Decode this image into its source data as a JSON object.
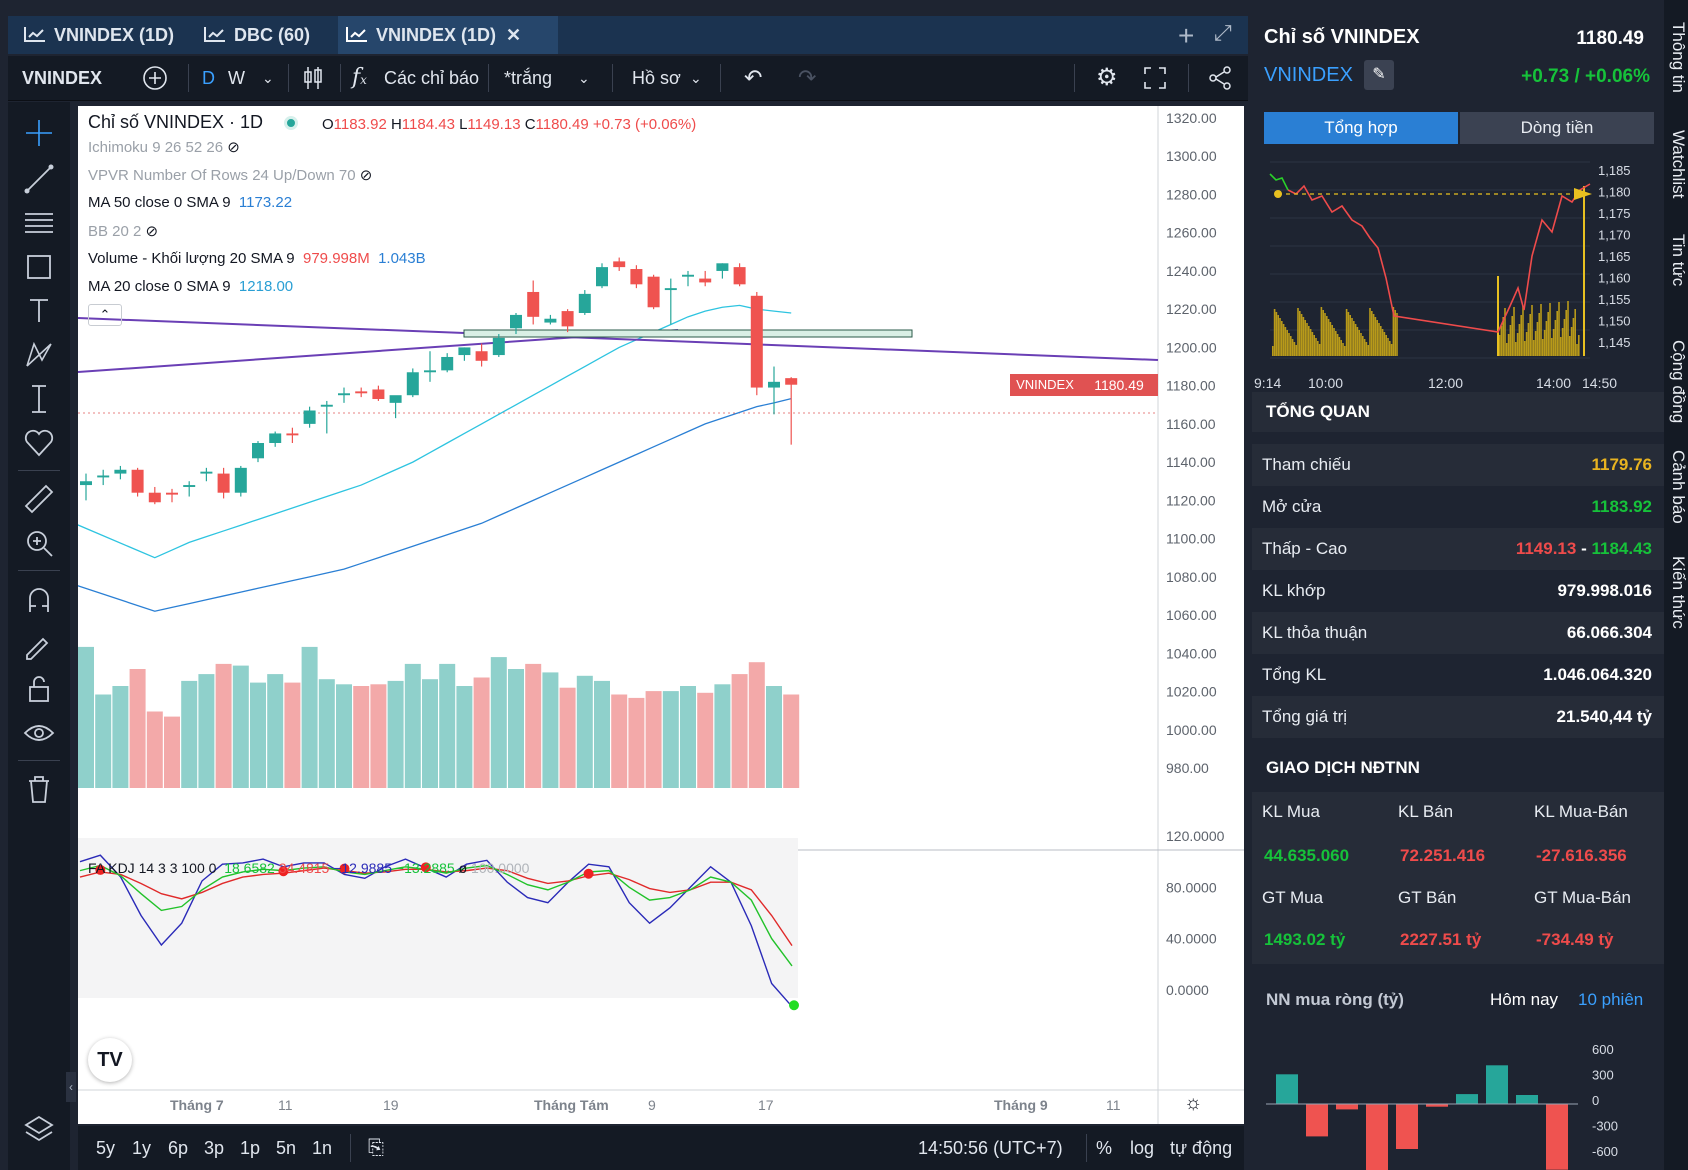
{
  "tabs": [
    {
      "label": "VNINDEX (1D)",
      "active": false
    },
    {
      "label": "DBC (60)",
      "active": false
    },
    {
      "label": "VNINDEX (1D)",
      "active": true
    }
  ],
  "toolbar": {
    "symbol": "VNINDEX",
    "interval_d": "D",
    "interval_w": "W",
    "indicators": "Các chỉ báo",
    "template": "*trắng",
    "profile": "Hồ sơ"
  },
  "legend": {
    "title": "Chỉ số VNINDEX · 1D",
    "o_label": "O",
    "o": "1183.92",
    "h_label": "H",
    "h": "1184.43",
    "l_label": "L",
    "l": "1149.13",
    "c_label": "C",
    "c": "1180.49",
    "change": "+0.73 (+0.06%)",
    "ichimoku": "Ichimoku 9 26 52 26",
    "vpvr": "VPVR Number Of Rows 24 Up/Down 70",
    "ma50": "MA 50 close 0 SMA 9",
    "ma50_val": "1173.22",
    "bb": "BB 20 2",
    "volume": "Volume - Khối lượng 20 SMA 9",
    "volume_v1": "979.998M",
    "volume_v2": "1.043B",
    "ma20": "MA 20 close 0 SMA 9",
    "ma20_val": "1218.00"
  },
  "kdj": {
    "label": "FA KDJ 14 3 3 100 0",
    "k": "18.6582",
    "d": "34.4815",
    "j": "−12.9885",
    "j2": "−13.2885",
    "sym": "ø",
    "v100": "100.0000"
  },
  "price_badge": {
    "symbol": "VNINDEX",
    "value": "1180.49"
  },
  "price_axis": [
    "1320.00",
    "1300.00",
    "1280.00",
    "1260.00",
    "1240.00",
    "1220.00",
    "1200.00",
    "1180.00",
    "1160.00",
    "1140.00",
    "1120.00",
    "1100.00",
    "1080.00",
    "1060.00",
    "1040.00",
    "1020.00",
    "1000.00",
    "980.00"
  ],
  "kdj_axis": [
    "120.0000",
    "80.0000",
    "40.0000",
    "0.0000"
  ],
  "time_axis": [
    "Tháng 7",
    "11",
    "19",
    "Tháng Tám",
    "9",
    "17",
    "Tháng 9",
    "11"
  ],
  "chart_data": {
    "type": "candlestick",
    "title": "Chỉ số VNINDEX · 1D",
    "ylim": [
      970,
      1330
    ],
    "candles": [
      {
        "o": 1128,
        "h": 1134,
        "l": 1120,
        "c": 1130
      },
      {
        "o": 1132,
        "h": 1136,
        "l": 1128,
        "c": 1133
      },
      {
        "o": 1134,
        "h": 1138,
        "l": 1131,
        "c": 1136
      },
      {
        "o": 1136,
        "h": 1137,
        "l": 1122,
        "c": 1124
      },
      {
        "o": 1124,
        "h": 1127,
        "l": 1118,
        "c": 1119
      },
      {
        "o": 1124,
        "h": 1126,
        "l": 1119,
        "c": 1123
      },
      {
        "o": 1127,
        "h": 1130,
        "l": 1122,
        "c": 1128
      },
      {
        "o": 1134,
        "h": 1137,
        "l": 1130,
        "c": 1135
      },
      {
        "o": 1134,
        "h": 1137,
        "l": 1121,
        "c": 1124
      },
      {
        "o": 1124,
        "h": 1138,
        "l": 1122,
        "c": 1137
      },
      {
        "o": 1142,
        "h": 1151,
        "l": 1140,
        "c": 1150
      },
      {
        "o": 1150,
        "h": 1156,
        "l": 1148,
        "c": 1155
      },
      {
        "o": 1155,
        "h": 1158,
        "l": 1150,
        "c": 1154
      },
      {
        "o": 1160,
        "h": 1169,
        "l": 1158,
        "c": 1167
      },
      {
        "o": 1169,
        "h": 1172,
        "l": 1155,
        "c": 1170
      },
      {
        "o": 1175,
        "h": 1179,
        "l": 1171,
        "c": 1176
      },
      {
        "o": 1177,
        "h": 1179,
        "l": 1174,
        "c": 1176
      },
      {
        "o": 1178,
        "h": 1180,
        "l": 1172,
        "c": 1173
      },
      {
        "o": 1171,
        "h": 1174,
        "l": 1163,
        "c": 1175
      },
      {
        "o": 1175,
        "h": 1189,
        "l": 1174,
        "c": 1187
      },
      {
        "o": 1187,
        "h": 1198,
        "l": 1182,
        "c": 1188
      },
      {
        "o": 1188,
        "h": 1197,
        "l": 1187,
        "c": 1195
      },
      {
        "o": 1196,
        "h": 1200,
        "l": 1193,
        "c": 1200
      },
      {
        "o": 1198,
        "h": 1202,
        "l": 1190,
        "c": 1193
      },
      {
        "o": 1196,
        "h": 1207,
        "l": 1195,
        "c": 1205
      },
      {
        "o": 1210,
        "h": 1218,
        "l": 1207,
        "c": 1217
      },
      {
        "o": 1229,
        "h": 1235,
        "l": 1212,
        "c": 1216
      },
      {
        "o": 1213,
        "h": 1217,
        "l": 1212,
        "c": 1215
      },
      {
        "o": 1219,
        "h": 1220,
        "l": 1208,
        "c": 1211
      },
      {
        "o": 1218,
        "h": 1230,
        "l": 1217,
        "c": 1228
      },
      {
        "o": 1232,
        "h": 1244,
        "l": 1231,
        "c": 1242
      },
      {
        "o": 1245,
        "h": 1247,
        "l": 1240,
        "c": 1242
      },
      {
        "o": 1241,
        "h": 1243,
        "l": 1231,
        "c": 1233
      },
      {
        "o": 1237,
        "h": 1238,
        "l": 1220,
        "c": 1221
      },
      {
        "o": 1230,
        "h": 1236,
        "l": 1212,
        "c": 1231
      },
      {
        "o": 1237,
        "h": 1240,
        "l": 1232,
        "c": 1238
      },
      {
        "o": 1236,
        "h": 1240,
        "l": 1232,
        "c": 1234
      },
      {
        "o": 1240,
        "h": 1244,
        "l": 1236,
        "c": 1244
      },
      {
        "o": 1242,
        "h": 1244,
        "l": 1232,
        "c": 1233
      },
      {
        "o": 1227,
        "h": 1229,
        "l": 1175,
        "c": 1179
      },
      {
        "o": 1179,
        "h": 1190,
        "l": 1165,
        "c": 1182
      },
      {
        "o": 1183.92,
        "h": 1184.43,
        "l": 1149.13,
        "c": 1180.49
      }
    ],
    "volume": [
      0.83,
      0.55,
      0.6,
      0.7,
      0.45,
      0.42,
      0.63,
      0.67,
      0.73,
      0.72,
      0.62,
      0.67,
      0.62,
      0.83,
      0.64,
      0.61,
      0.6,
      0.61,
      0.63,
      0.73,
      0.64,
      0.73,
      0.6,
      0.65,
      0.77,
      0.7,
      0.73,
      0.68,
      0.59,
      0.66,
      0.63,
      0.55,
      0.53,
      0.57,
      0.57,
      0.6,
      0.56,
      0.61,
      0.67,
      0.74,
      0.6,
      0.55
    ],
    "ma20": [
      1090,
      1094,
      1098,
      1101,
      1104,
      1107,
      1110,
      1113,
      1116,
      1119,
      1122,
      1125,
      1128,
      1132,
      1136,
      1140,
      1145,
      1150,
      1155,
      1160,
      1165,
      1170,
      1175,
      1180,
      1185,
      1190,
      1195,
      1200,
      1204,
      1208,
      1212,
      1216,
      1219,
      1221,
      1222,
      1220,
      1219,
      1218
    ],
    "ma50": [
      1062,
      1064,
      1066,
      1068,
      1070,
      1072,
      1074,
      1076,
      1078,
      1080,
      1082,
      1084,
      1087,
      1090,
      1093,
      1096,
      1099,
      1102,
      1105,
      1108,
      1112,
      1116,
      1120,
      1124,
      1128,
      1132,
      1136,
      1140,
      1144,
      1148,
      1152,
      1156,
      1160,
      1163,
      1166,
      1169,
      1171,
      1173.22
    ],
    "kdj_k": [
      93,
      97,
      89,
      75,
      62,
      65,
      78,
      88,
      92,
      94,
      93,
      95,
      96,
      92,
      90,
      93,
      96,
      94,
      91,
      95,
      97,
      90,
      82,
      78,
      84,
      92,
      93,
      80,
      70,
      72,
      78,
      88,
      84,
      70,
      40,
      18.6582
    ],
    "kdj_d": [
      88,
      92,
      90,
      83,
      75,
      71,
      76,
      83,
      88,
      90,
      91,
      93,
      95,
      93,
      91,
      92,
      94,
      94,
      92,
      93,
      95,
      93,
      87,
      83,
      85,
      89,
      91,
      86,
      79,
      76,
      78,
      84,
      84,
      78,
      58,
      34.4815
    ],
    "kdj_j": [
      100,
      105,
      88,
      58,
      35,
      52,
      85,
      98,
      99,
      102,
      96,
      99,
      99,
      90,
      87,
      96,
      102,
      95,
      88,
      98,
      101,
      84,
      72,
      68,
      84,
      98,
      96,
      68,
      52,
      64,
      80,
      96,
      84,
      50,
      5,
      -12.9885
    ]
  },
  "right": {
    "title": "Chỉ số VNINDEX",
    "price": "1180.49",
    "symbol": "VNINDEX",
    "change": "+0.73 / +0.06%",
    "tab1": "Tổng hợp",
    "tab2": "Dòng tiền",
    "mini_yaxis": [
      "1,185",
      "1,180",
      "1,175",
      "1,170",
      "1,165",
      "1,160",
      "1,155",
      "1,150",
      "1,145"
    ],
    "mini_xaxis": [
      "9:14",
      "10:00",
      "12:00",
      "14:00",
      "14:50"
    ],
    "overview_title": "TỔNG QUAN",
    "rows": [
      {
        "label": "Tham chiếu",
        "value": "1179.76"
      },
      {
        "label": "Mở cửa",
        "value": "1183.92"
      },
      {
        "label": "Thấp - Cao",
        "low": "1149.13",
        "sep": "-",
        "high": "1184.43"
      },
      {
        "label": "KL khớp",
        "value": "979.998.016"
      },
      {
        "label": "KL thỏa thuận",
        "value": "66.066.304"
      },
      {
        "label": "Tổng KL",
        "value": "1.046.064.320"
      },
      {
        "label": "Tổng giá trị",
        "value": "21.540,44 tỷ"
      }
    ],
    "foreign_title": "GIAO DỊCH NĐTNN",
    "foreign": {
      "h1": "KL Mua",
      "h2": "KL Bán",
      "h3": "KL Mua-Bán",
      "v1": "44.635.060",
      "v2": "72.251.416",
      "v3": "-27.616.356",
      "h4": "GT Mua",
      "h5": "GT Bán",
      "h6": "GT Mua-Bán",
      "v4": "1493.02 tỷ",
      "v5": "2227.51 tỷ",
      "v6": "-734.49 tỷ"
    },
    "netbuy_title": "NN mua ròng (tỷ)",
    "netbuy_today": "Hôm nay",
    "netbuy_10": "10 phiên",
    "netbuy_axis": [
      "600",
      "300",
      "0",
      "-300",
      "-600",
      "-900"
    ],
    "netbuy_values": [
      330,
      -360,
      -60,
      -900,
      -500,
      -30,
      110,
      430,
      100,
      -730
    ]
  },
  "side_tabs": [
    "Thông tin",
    "Watchlist",
    "Tin tức",
    "Cộng đồng",
    "Cảnh báo",
    "Kiến thức"
  ],
  "bottom": {
    "ranges": [
      "5y",
      "1y",
      "6p",
      "3p",
      "1p",
      "5n",
      "1n"
    ],
    "time": "14:50:56 (UTC+7)",
    "pct": "%",
    "log": "log",
    "auto": "tự động"
  },
  "colors": {
    "up": "#26a69a",
    "down": "#ef5350",
    "ma20": "#2ec4e0",
    "ma50": "#2a7fd4",
    "trend": "#6a3fb5"
  }
}
